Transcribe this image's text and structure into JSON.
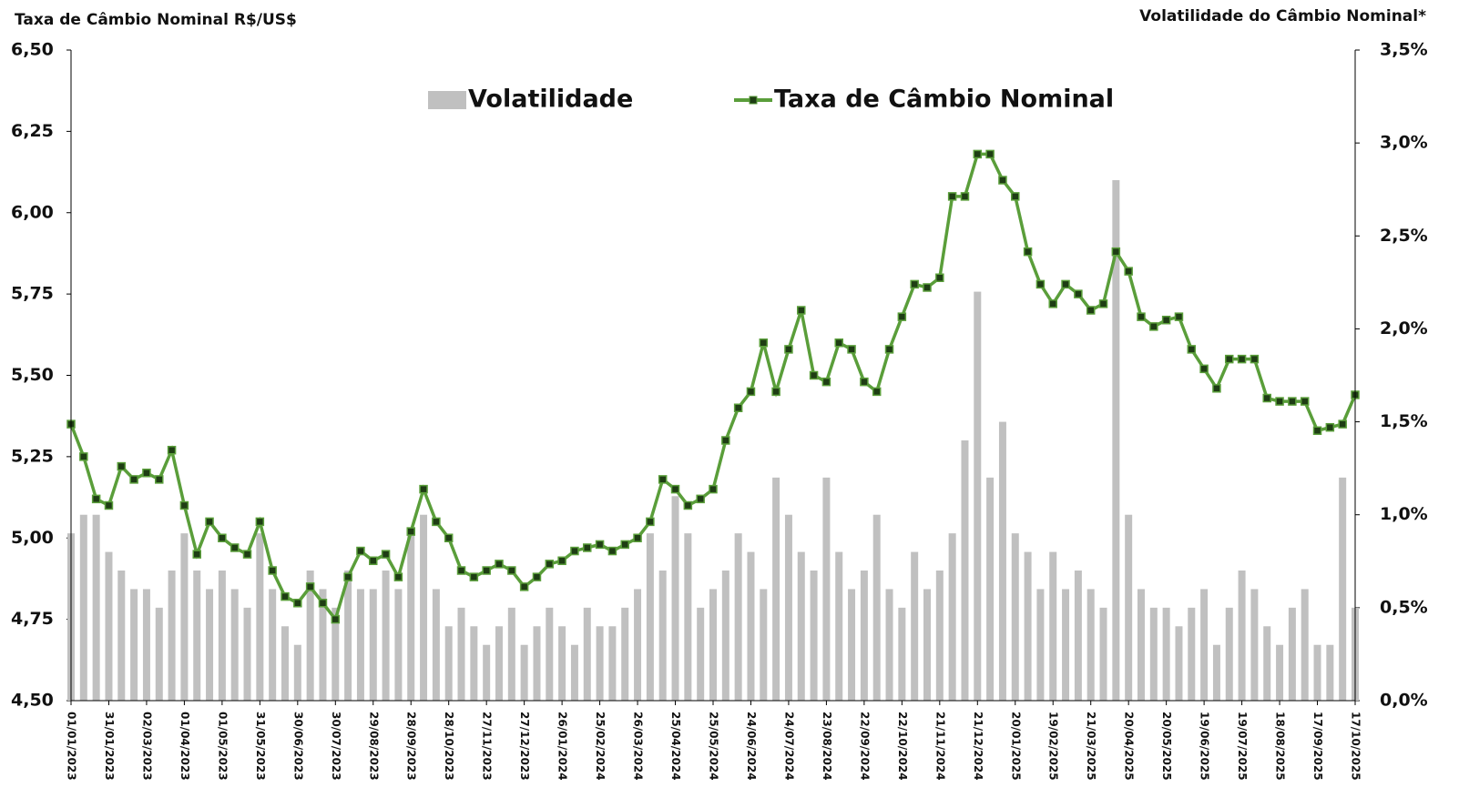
{
  "chart_data": {
    "type": "bar-line",
    "y_title": "Taxa de Câmbio Nominal R$/US$",
    "y2_title": "Volatilidade do Câmbio Nominal*",
    "x": [
      "01/01/2023",
      "11/01/2023",
      "21/01/2023",
      "31/01/2023",
      "10/02/2023",
      "20/02/2023",
      "02/03/2023",
      "12/03/2023",
      "22/03/2023",
      "01/04/2023",
      "11/04/2023",
      "21/04/2023",
      "01/05/2023",
      "11/05/2023",
      "21/05/2023",
      "31/05/2023",
      "10/06/2023",
      "20/06/2023",
      "30/06/2023",
      "10/07/2023",
      "20/07/2023",
      "30/07/2023",
      "09/08/2023",
      "19/08/2023",
      "29/08/2023",
      "08/09/2023",
      "18/09/2023",
      "28/09/2023",
      "08/10/2023",
      "18/10/2023",
      "28/10/2023",
      "07/11/2023",
      "17/11/2023",
      "27/11/2023",
      "07/12/2023",
      "17/12/2023",
      "27/12/2023",
      "06/01/2024",
      "16/01/2024",
      "26/01/2024",
      "05/02/2024",
      "15/02/2024",
      "25/02/2024",
      "06/03/2024",
      "16/03/2024",
      "26/03/2024",
      "05/04/2024",
      "15/04/2024",
      "25/04/2024",
      "05/05/2024",
      "15/05/2024",
      "25/05/2024",
      "04/06/2024",
      "14/06/2024",
      "24/06/2024",
      "04/07/2024",
      "14/07/2024",
      "24/07/2024",
      "03/08/2024",
      "13/08/2024",
      "23/08/2024",
      "02/09/2024",
      "12/09/2024",
      "22/09/2024",
      "02/10/2024",
      "12/10/2024",
      "22/10/2024",
      "01/11/2024",
      "11/11/2024",
      "21/11/2024",
      "01/12/2024",
      "11/12/2024",
      "21/12/2024",
      "31/12/2024",
      "10/01/2025",
      "20/01/2025",
      "30/01/2025",
      "09/02/2025",
      "19/02/2025",
      "01/03/2025",
      "11/03/2025",
      "21/03/2025",
      "31/03/2025",
      "10/04/2025",
      "20/04/2025",
      "30/04/2025",
      "10/05/2025",
      "20/05/2025",
      "30/05/2025",
      "09/06/2025",
      "19/06/2025",
      "29/06/2025",
      "09/07/2025",
      "19/07/2025",
      "29/07/2025",
      "08/08/2025",
      "18/08/2025",
      "28/08/2025",
      "07/09/2025",
      "17/09/2025",
      "27/09/2025",
      "07/10/2025",
      "17/10/2025"
    ],
    "series": [
      {
        "name": "Volatilidade",
        "kind": "bar",
        "axis": "y2",
        "color": "#c0c0c0",
        "values": [
          0.9,
          1.0,
          1.0,
          0.8,
          0.7,
          0.6,
          0.6,
          0.5,
          0.7,
          0.9,
          0.7,
          0.6,
          0.7,
          0.6,
          0.5,
          0.9,
          0.6,
          0.4,
          0.3,
          0.7,
          0.6,
          0.5,
          0.7,
          0.6,
          0.6,
          0.7,
          0.6,
          0.9,
          1.0,
          0.6,
          0.4,
          0.5,
          0.4,
          0.3,
          0.4,
          0.5,
          0.3,
          0.4,
          0.5,
          0.4,
          0.3,
          0.5,
          0.4,
          0.4,
          0.5,
          0.6,
          0.9,
          0.7,
          1.1,
          0.9,
          0.5,
          0.6,
          0.7,
          0.9,
          0.8,
          0.6,
          1.2,
          1.0,
          0.8,
          0.7,
          1.2,
          0.8,
          0.6,
          0.7,
          1.0,
          0.6,
          0.5,
          0.8,
          0.6,
          0.7,
          0.9,
          1.4,
          2.2,
          1.2,
          1.5,
          0.9,
          0.8,
          0.6,
          0.8,
          0.6,
          0.7,
          0.6,
          0.5,
          2.8,
          1.0,
          0.6,
          0.5,
          0.5,
          0.4,
          0.5,
          0.6,
          0.3,
          0.5,
          0.7,
          0.6,
          0.4,
          0.3,
          0.5,
          0.6,
          0.3,
          0.3,
          1.2,
          0.5
        ]
      },
      {
        "name": "Taxa de Câmbio Nominal",
        "kind": "line",
        "axis": "y",
        "color": "#5a9e3a",
        "marker_color": "#1e3d14",
        "values": [
          5.35,
          5.25,
          5.12,
          5.1,
          5.22,
          5.18,
          5.2,
          5.18,
          5.27,
          5.1,
          4.95,
          5.05,
          5.0,
          4.97,
          4.95,
          5.05,
          4.9,
          4.82,
          4.8,
          4.85,
          4.8,
          4.75,
          4.88,
          4.96,
          4.93,
          4.95,
          4.88,
          5.02,
          5.15,
          5.05,
          5.0,
          4.9,
          4.88,
          4.9,
          4.92,
          4.9,
          4.85,
          4.88,
          4.92,
          4.93,
          4.96,
          4.97,
          4.98,
          4.96,
          4.98,
          5.0,
          5.05,
          5.18,
          5.15,
          5.1,
          5.12,
          5.15,
          5.3,
          5.4,
          5.45,
          5.6,
          5.45,
          5.58,
          5.7,
          5.5,
          5.48,
          5.6,
          5.58,
          5.48,
          5.45,
          5.58,
          5.68,
          5.78,
          5.77,
          5.8,
          6.05,
          6.05,
          6.18,
          6.18,
          6.1,
          6.05,
          5.88,
          5.78,
          5.72,
          5.78,
          5.75,
          5.7,
          5.72,
          5.88,
          5.82,
          5.68,
          5.65,
          5.67,
          5.68,
          5.58,
          5.52,
          5.46,
          5.55,
          5.55,
          5.55,
          5.43,
          5.42,
          5.42,
          5.42,
          5.33,
          5.34,
          5.35,
          5.44
        ]
      }
    ],
    "xlim": [
      "01/01/2023",
      "17/10/2025"
    ],
    "xticks": [
      "01/01/2023",
      "31/01/2023",
      "02/03/2023",
      "01/04/2023",
      "01/05/2023",
      "31/05/2023",
      "30/06/2023",
      "30/07/2023",
      "29/08/2023",
      "28/09/2023",
      "28/10/2023",
      "27/11/2023",
      "27/12/2023",
      "26/01/2024",
      "25/02/2024",
      "26/03/2024",
      "25/04/2024",
      "25/05/2024",
      "24/06/2024",
      "24/07/2024",
      "23/08/2024",
      "22/09/2024",
      "22/10/2024",
      "21/11/2024",
      "21/12/2024",
      "20/01/2025",
      "19/02/2025",
      "21/03/2025",
      "20/04/2025",
      "20/05/2025",
      "19/06/2025",
      "19/07/2025",
      "18/08/2025",
      "17/09/2025",
      "17/10/2025"
    ],
    "ylim": [
      4.5,
      6.5
    ],
    "yticks": [
      {
        "value": 4.5,
        "label": "4,50"
      },
      {
        "value": 4.75,
        "label": "4,75"
      },
      {
        "value": 5,
        "label": "5,00"
      },
      {
        "value": 5.25,
        "label": "5,25"
      },
      {
        "value": 5.5,
        "label": "5,50"
      },
      {
        "value": 5.75,
        "label": "5,75"
      },
      {
        "value": 6,
        "label": "6,00"
      },
      {
        "value": 6.25,
        "label": "6,25"
      },
      {
        "value": 6.5,
        "label": "6,50"
      }
    ],
    "y2lim": [
      0,
      3.5
    ],
    "y2ticks": [
      {
        "value": 0,
        "label": "0,0%"
      },
      {
        "value": 0.5,
        "label": "0,5%"
      },
      {
        "value": 1,
        "label": "1,0%"
      },
      {
        "value": 1.5,
        "label": "1,5%"
      },
      {
        "value": 2,
        "label": "2,0%"
      },
      {
        "value": 2.5,
        "label": "2,5%"
      },
      {
        "value": 3,
        "label": "3,0%"
      },
      {
        "value": 3.5,
        "label": "3,5%"
      }
    ],
    "grid": false,
    "legend": "top"
  }
}
